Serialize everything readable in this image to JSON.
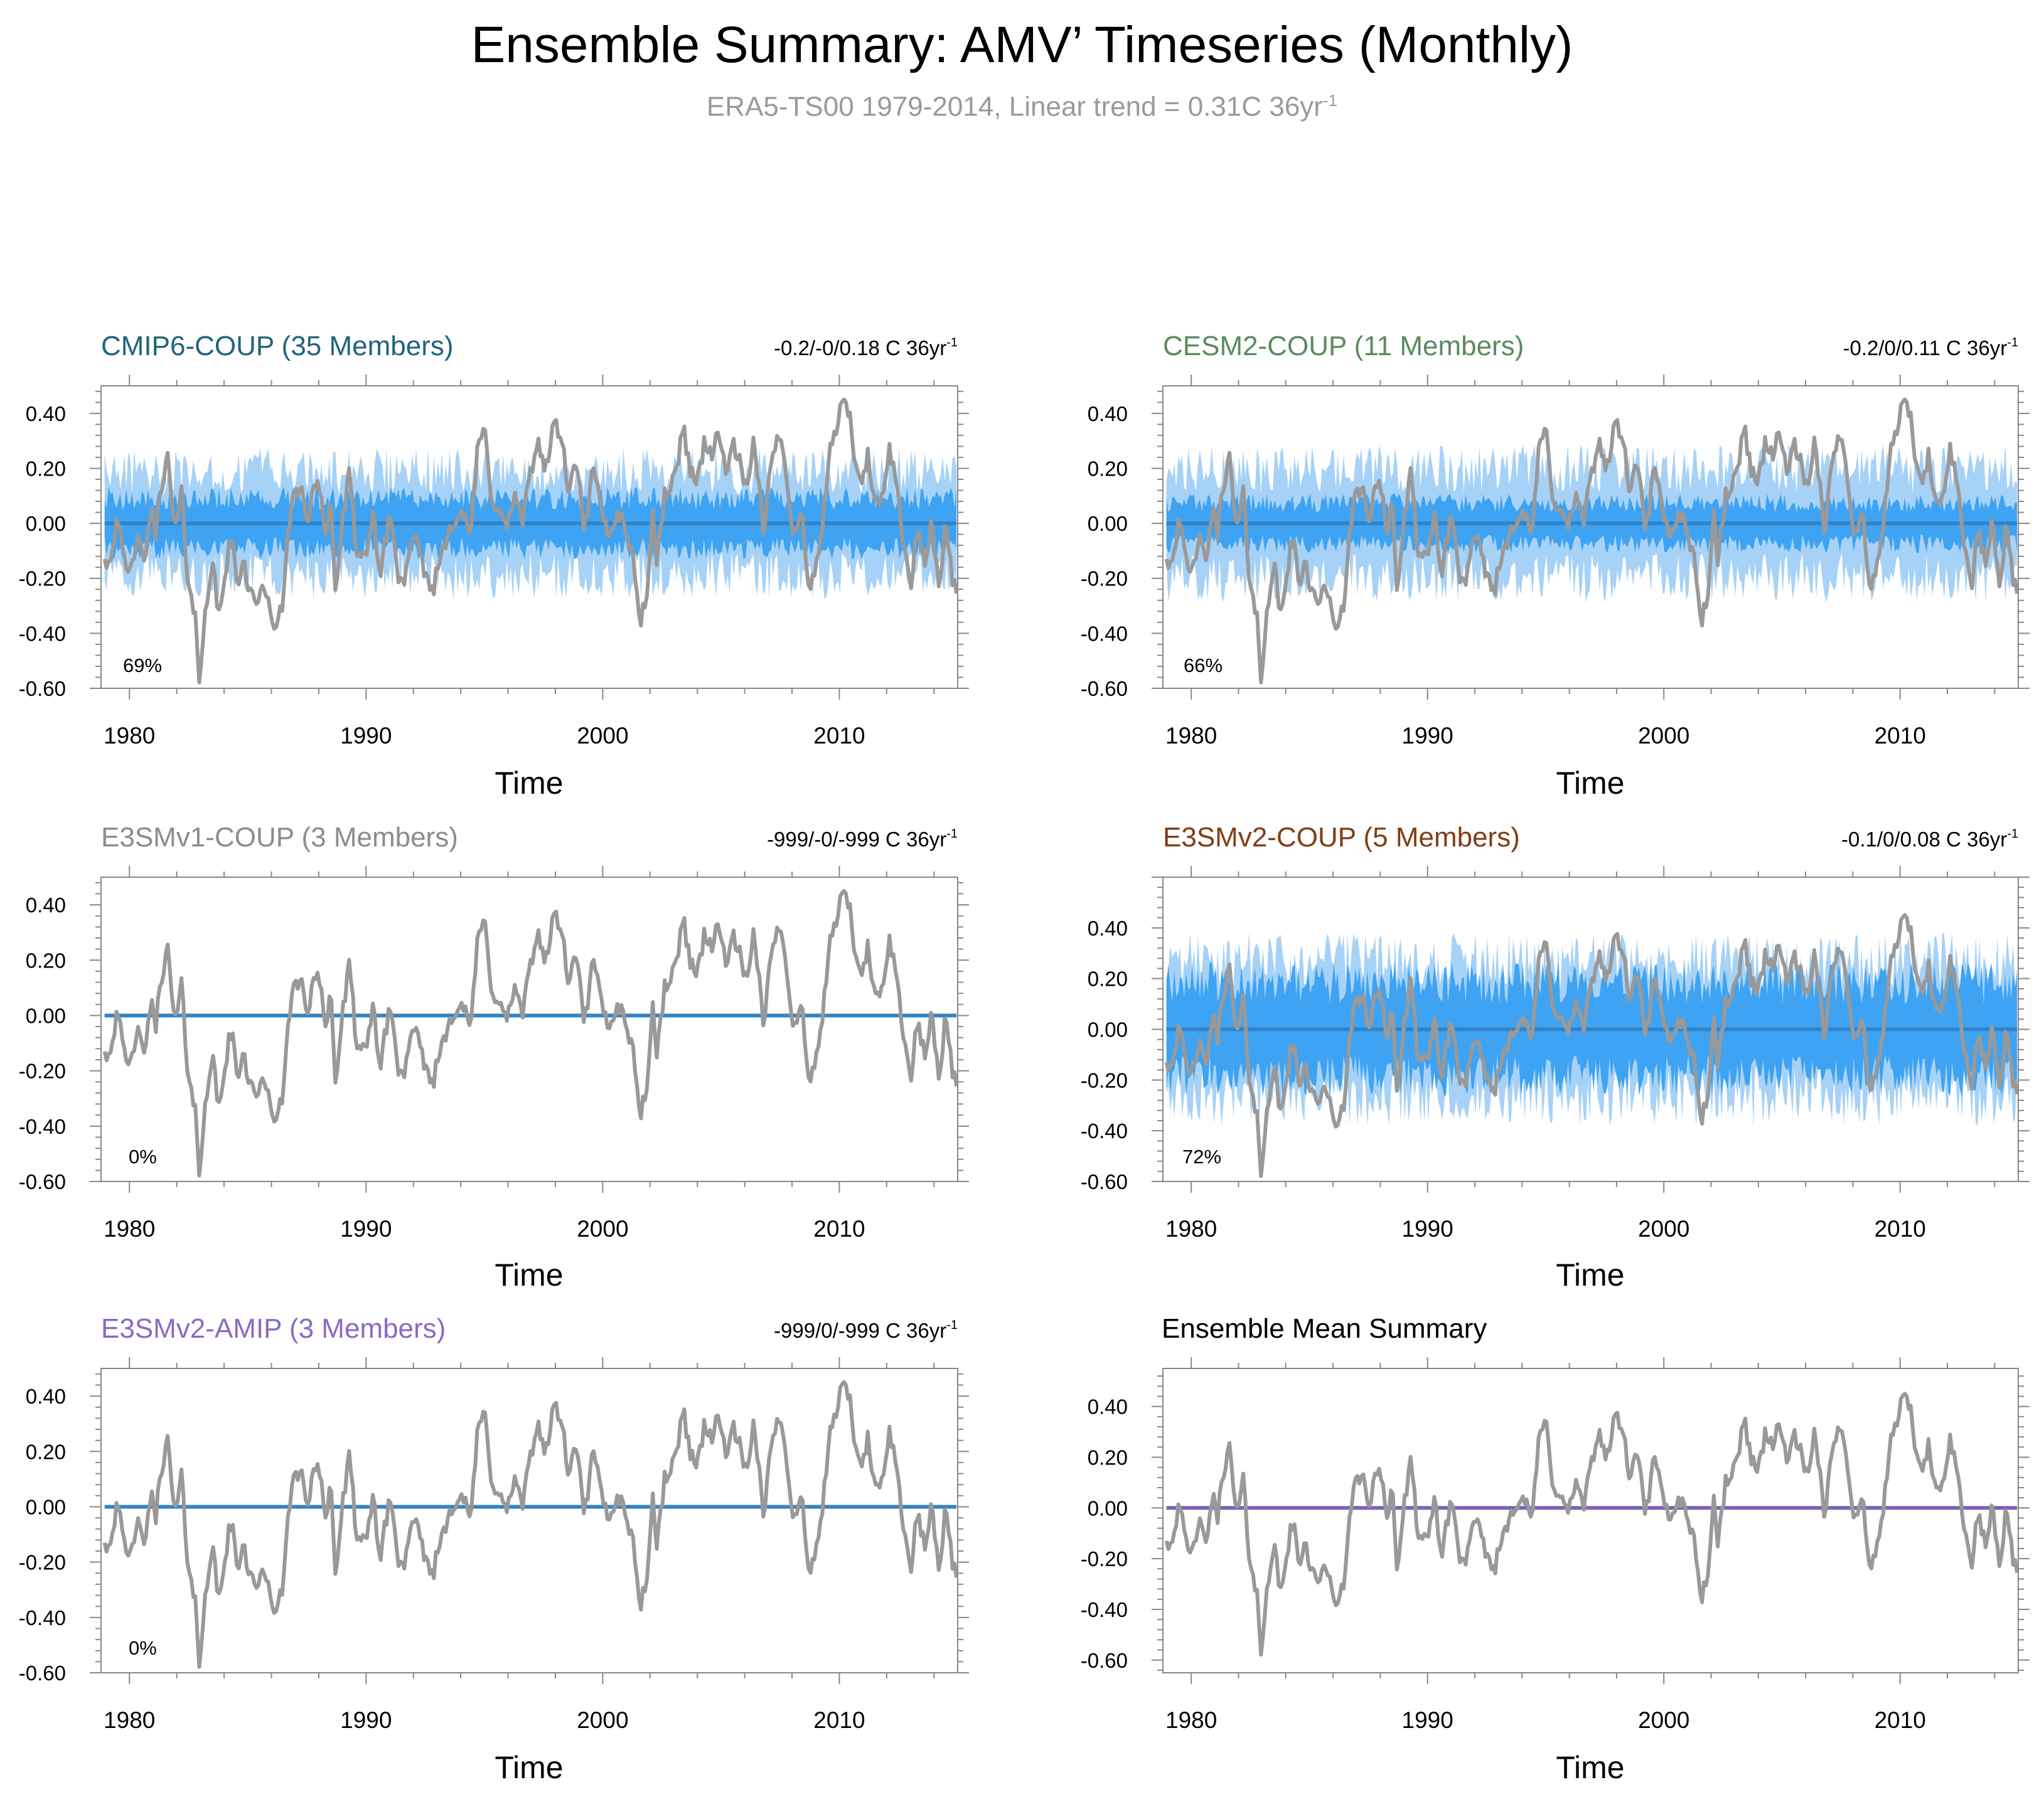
{
  "figure": {
    "title": "Ensemble Summary: AMV’ Timeseries (Monthly)",
    "subtitle_main": "ERA5-TS00 1979-2014, Linear trend = 0.31C 36yr",
    "subtitle_sup": "-1",
    "colors": {
      "obs_line": "#999999",
      "ens_mean_blue": "#3383c7",
      "summary_mean_purple": "#7e62b4",
      "spread_outer": "#a7d2f7",
      "spread_inner": "#3ea3f3",
      "axis": "#888888"
    }
  },
  "chart_data": [
    {
      "type": "line",
      "title": "CMIP6-COUP (35 Members)",
      "title_color": "#20637d",
      "trend_label": "-0.2/-0/0.18 C 36yr",
      "trend_sup": "-1",
      "percent_label": "69%",
      "xlabel": "Time",
      "xlim": [
        1978.8,
        2015.0
      ],
      "ylim": [
        -0.6,
        0.5
      ],
      "xticks": [
        1980,
        1990,
        2000,
        2010
      ],
      "yticks": [
        -0.6,
        -0.4,
        -0.2,
        0.0,
        0.2,
        0.4
      ],
      "ytick_labels": [
        "-0.60",
        "-0.40",
        "-0.20",
        "0.00",
        "0.20",
        "0.40"
      ],
      "series": [
        {
          "name": "ERA5-TS00 observed AMV'",
          "color": "#999999"
        },
        {
          "name": "Ensemble mean",
          "color": "#3383c7",
          "values": "constant 0.00"
        },
        {
          "name": "Ensemble spread (outer)",
          "color": "#a7d2f7",
          "band": 0.23
        },
        {
          "name": "Ensemble spread (inner)",
          "color": "#3ea3f3",
          "band": 0.11
        }
      ]
    },
    {
      "type": "line",
      "title": "CESM2-COUP (11 Members)",
      "title_color": "#5b8a5f",
      "trend_label": "-0.2/0/0.11 C 36yr",
      "trend_sup": "-1",
      "percent_label": "66%",
      "xlabel": "Time",
      "xlim": [
        1978.8,
        2015.0
      ],
      "ylim": [
        -0.6,
        0.5
      ],
      "xticks": [
        1980,
        1990,
        2000,
        2010
      ],
      "yticks": [
        -0.6,
        -0.4,
        -0.2,
        0.0,
        0.2,
        0.4
      ],
      "ytick_labels": [
        "-0.60",
        "-0.40",
        "-0.20",
        "0.00",
        "0.20",
        "0.40"
      ],
      "series": [
        {
          "name": "ERA5-TS00 observed AMV'",
          "color": "#999999"
        },
        {
          "name": "Ensemble mean",
          "color": "#3383c7",
          "values": "constant 0.00"
        },
        {
          "name": "Ensemble spread (outer)",
          "color": "#a7d2f7",
          "band": 0.24
        },
        {
          "name": "Ensemble spread (inner)",
          "color": "#3ea3f3",
          "band": 0.09
        }
      ]
    },
    {
      "type": "line",
      "title": "E3SMv1-COUP (3 Members)",
      "title_color": "#8c8c8c",
      "trend_label": "-999/-0/-999 C 36yr",
      "trend_sup": "-1",
      "percent_label": "0%",
      "xlabel": "Time",
      "xlim": [
        1978.8,
        2015.0
      ],
      "ylim": [
        -0.6,
        0.5
      ],
      "xticks": [
        1980,
        1990,
        2000,
        2010
      ],
      "yticks": [
        -0.6,
        -0.4,
        -0.2,
        0.0,
        0.2,
        0.4
      ],
      "ytick_labels": [
        "-0.60",
        "-0.40",
        "-0.20",
        "0.00",
        "0.20",
        "0.40"
      ],
      "series": [
        {
          "name": "ERA5-TS00 observed AMV'",
          "color": "#999999"
        },
        {
          "name": "Ensemble mean",
          "color": "#3383c7",
          "values": "constant 0.00"
        }
      ]
    },
    {
      "type": "line",
      "title": "E3SMv2-COUP (5 Members)",
      "title_color": "#7f3e14",
      "trend_label": "-0.1/0/0.08 C 36yr",
      "trend_sup": "-1",
      "percent_label": "72%",
      "xlabel": "Time",
      "xlim": [
        1978.8,
        2015.0
      ],
      "ylim": [
        -0.6,
        0.6
      ],
      "xticks": [
        1980,
        1990,
        2000,
        2010
      ],
      "yticks": [
        -0.6,
        -0.4,
        -0.2,
        0.0,
        0.2,
        0.4
      ],
      "ytick_labels": [
        "-0.60",
        "-0.40",
        "-0.20",
        "0.00",
        "0.20",
        "0.40"
      ],
      "series": [
        {
          "name": "ERA5-TS00 observed AMV'",
          "color": "#999999"
        },
        {
          "name": "Ensemble mean",
          "color": "#3383c7",
          "values": "constant 0.00"
        },
        {
          "name": "Ensemble spread (outer)",
          "color": "#a7d2f7",
          "band": 0.32
        },
        {
          "name": "Ensemble spread (inner)",
          "color": "#3ea3f3",
          "band": 0.22
        }
      ]
    },
    {
      "type": "line",
      "title": "E3SMv2-AMIP (3 Members)",
      "title_color": "#8a6ac4",
      "trend_label": "-999/0/-999 C 36yr",
      "trend_sup": "-1",
      "percent_label": "0%",
      "xlabel": "Time",
      "xlim": [
        1978.8,
        2015.0
      ],
      "ylim": [
        -0.6,
        0.5
      ],
      "xticks": [
        1980,
        1990,
        2000,
        2010
      ],
      "yticks": [
        -0.6,
        -0.4,
        -0.2,
        0.0,
        0.2,
        0.4
      ],
      "ytick_labels": [
        "-0.60",
        "-0.40",
        "-0.20",
        "0.00",
        "0.20",
        "0.40"
      ],
      "series": [
        {
          "name": "ERA5-TS00 observed AMV'",
          "color": "#999999"
        },
        {
          "name": "Ensemble mean",
          "color": "#3383c7",
          "values": "constant 0.00"
        }
      ]
    },
    {
      "type": "line",
      "title": "Ensemble Mean Summary",
      "title_color": "#000000",
      "trend_label": "",
      "trend_sup": "",
      "percent_label": "",
      "xlabel": "Time",
      "xlim": [
        1978.8,
        2015.0
      ],
      "ylim": [
        -0.65,
        0.55
      ],
      "xticks": [
        1980,
        1990,
        2000,
        2010
      ],
      "yticks": [
        -0.6,
        -0.4,
        -0.2,
        0.0,
        0.2,
        0.4
      ],
      "ytick_labels": [
        "-0.60",
        "-0.40",
        "-0.20",
        "0.00",
        "0.20",
        "0.40"
      ],
      "series": [
        {
          "name": "ERA5-TS00 observed AMV'",
          "color": "#999999"
        },
        {
          "name": "Ensemble mean summary",
          "color": "#7e62b4",
          "values": "constant 0.00"
        }
      ]
    }
  ],
  "observed_anchor_points": {
    "x": [
      1978.9,
      1979.1,
      1979.3,
      1979.5,
      1979.7,
      1980.0,
      1980.3,
      1980.6,
      1980.9,
      1981.1,
      1981.3,
      1981.6,
      1981.8,
      1982.0,
      1982.2,
      1982.4,
      1982.6,
      1982.8,
      1982.95,
      1983.2,
      1983.5,
      1983.8,
      1984.0,
      1984.3,
      1984.6,
      1984.8,
      1985.0,
      1985.3,
      1985.6,
      1985.9,
      1986.2,
      1986.5,
      1986.7,
      1987.0,
      1987.3,
      1987.5,
      1987.7,
      1988.0,
      1988.3,
      1988.5,
      1988.7,
      1989.0,
      1989.3,
      1989.6,
      1990.0,
      1990.3,
      1990.6,
      1991.0,
      1991.4,
      1991.7,
      1992.0,
      1992.4,
      1992.8,
      1993.2,
      1993.6,
      1994.0,
      1994.4,
      1994.7,
      1995.0,
      1995.3,
      1995.6,
      1995.9,
      1996.3,
      1996.6,
      1997.0,
      1997.3,
      1997.6,
      1998.0,
      1998.3,
      1998.6,
      1998.9,
      1999.2,
      1999.6,
      2000.0,
      2000.3,
      2000.6,
      2001.0,
      2001.3,
      2001.6,
      2001.9,
      2002.1,
      2002.3,
      2002.6,
      2003.0,
      2003.4,
      2003.7,
      2004.0,
      2004.3,
      2004.6,
      2004.9,
      2005.2,
      2005.5,
      2005.8,
      2006.1,
      2006.4,
      2006.8,
      2007.1,
      2007.5,
      2007.8,
      2008.1,
      2008.4,
      2008.7,
      2009.0,
      2009.3,
      2009.6,
      2009.9,
      2010.2,
      2010.5,
      2010.7,
      2010.9,
      2011.2,
      2011.5,
      2011.8,
      2012.1,
      2012.4,
      2012.7,
      2013.0,
      2013.3,
      2013.6,
      2013.9,
      2014.2,
      2014.5,
      2014.8
    ],
    "y": [
      -0.1,
      -0.15,
      -0.08,
      0.05,
      -0.12,
      -0.2,
      -0.05,
      -0.15,
      0.05,
      -0.05,
      0.12,
      0.25,
      0.05,
      -0.02,
      0.12,
      -0.15,
      -0.25,
      -0.35,
      -0.6,
      -0.3,
      -0.15,
      -0.35,
      -0.2,
      -0.05,
      -0.25,
      -0.1,
      -0.22,
      -0.28,
      -0.25,
      -0.3,
      -0.38,
      -0.3,
      0.0,
      0.1,
      0.15,
      -0.05,
      0.12,
      0.17,
      -0.05,
      0.1,
      -0.25,
      0.0,
      0.18,
      -0.1,
      -0.15,
      0.05,
      -0.2,
      0.05,
      -0.22,
      -0.18,
      -0.05,
      -0.15,
      -0.25,
      -0.1,
      0.0,
      0.05,
      -0.05,
      0.25,
      0.35,
      0.1,
      0.05,
      -0.02,
      0.1,
      0.0,
      0.2,
      0.3,
      0.2,
      0.38,
      0.28,
      0.1,
      0.25,
      -0.05,
      0.2,
      0.02,
      -0.05,
      0.05,
      -0.02,
      -0.15,
      -0.35,
      -0.25,
      0.05,
      -0.15,
      0.1,
      0.15,
      0.35,
      0.2,
      0.15,
      0.3,
      0.25,
      0.32,
      0.2,
      0.28,
      0.22,
      0.1,
      0.3,
      -0.02,
      0.2,
      0.35,
      0.15,
      -0.05,
      0.05,
      -0.25,
      -0.15,
      0.0,
      0.25,
      0.35,
      0.47,
      0.35,
      0.2,
      0.12,
      0.25,
      0.05,
      0.1,
      0.28,
      0.15,
      -0.05,
      -0.25,
      -0.02,
      -0.15,
      0.0,
      -0.22,
      0.0,
      -0.23
    ]
  }
}
